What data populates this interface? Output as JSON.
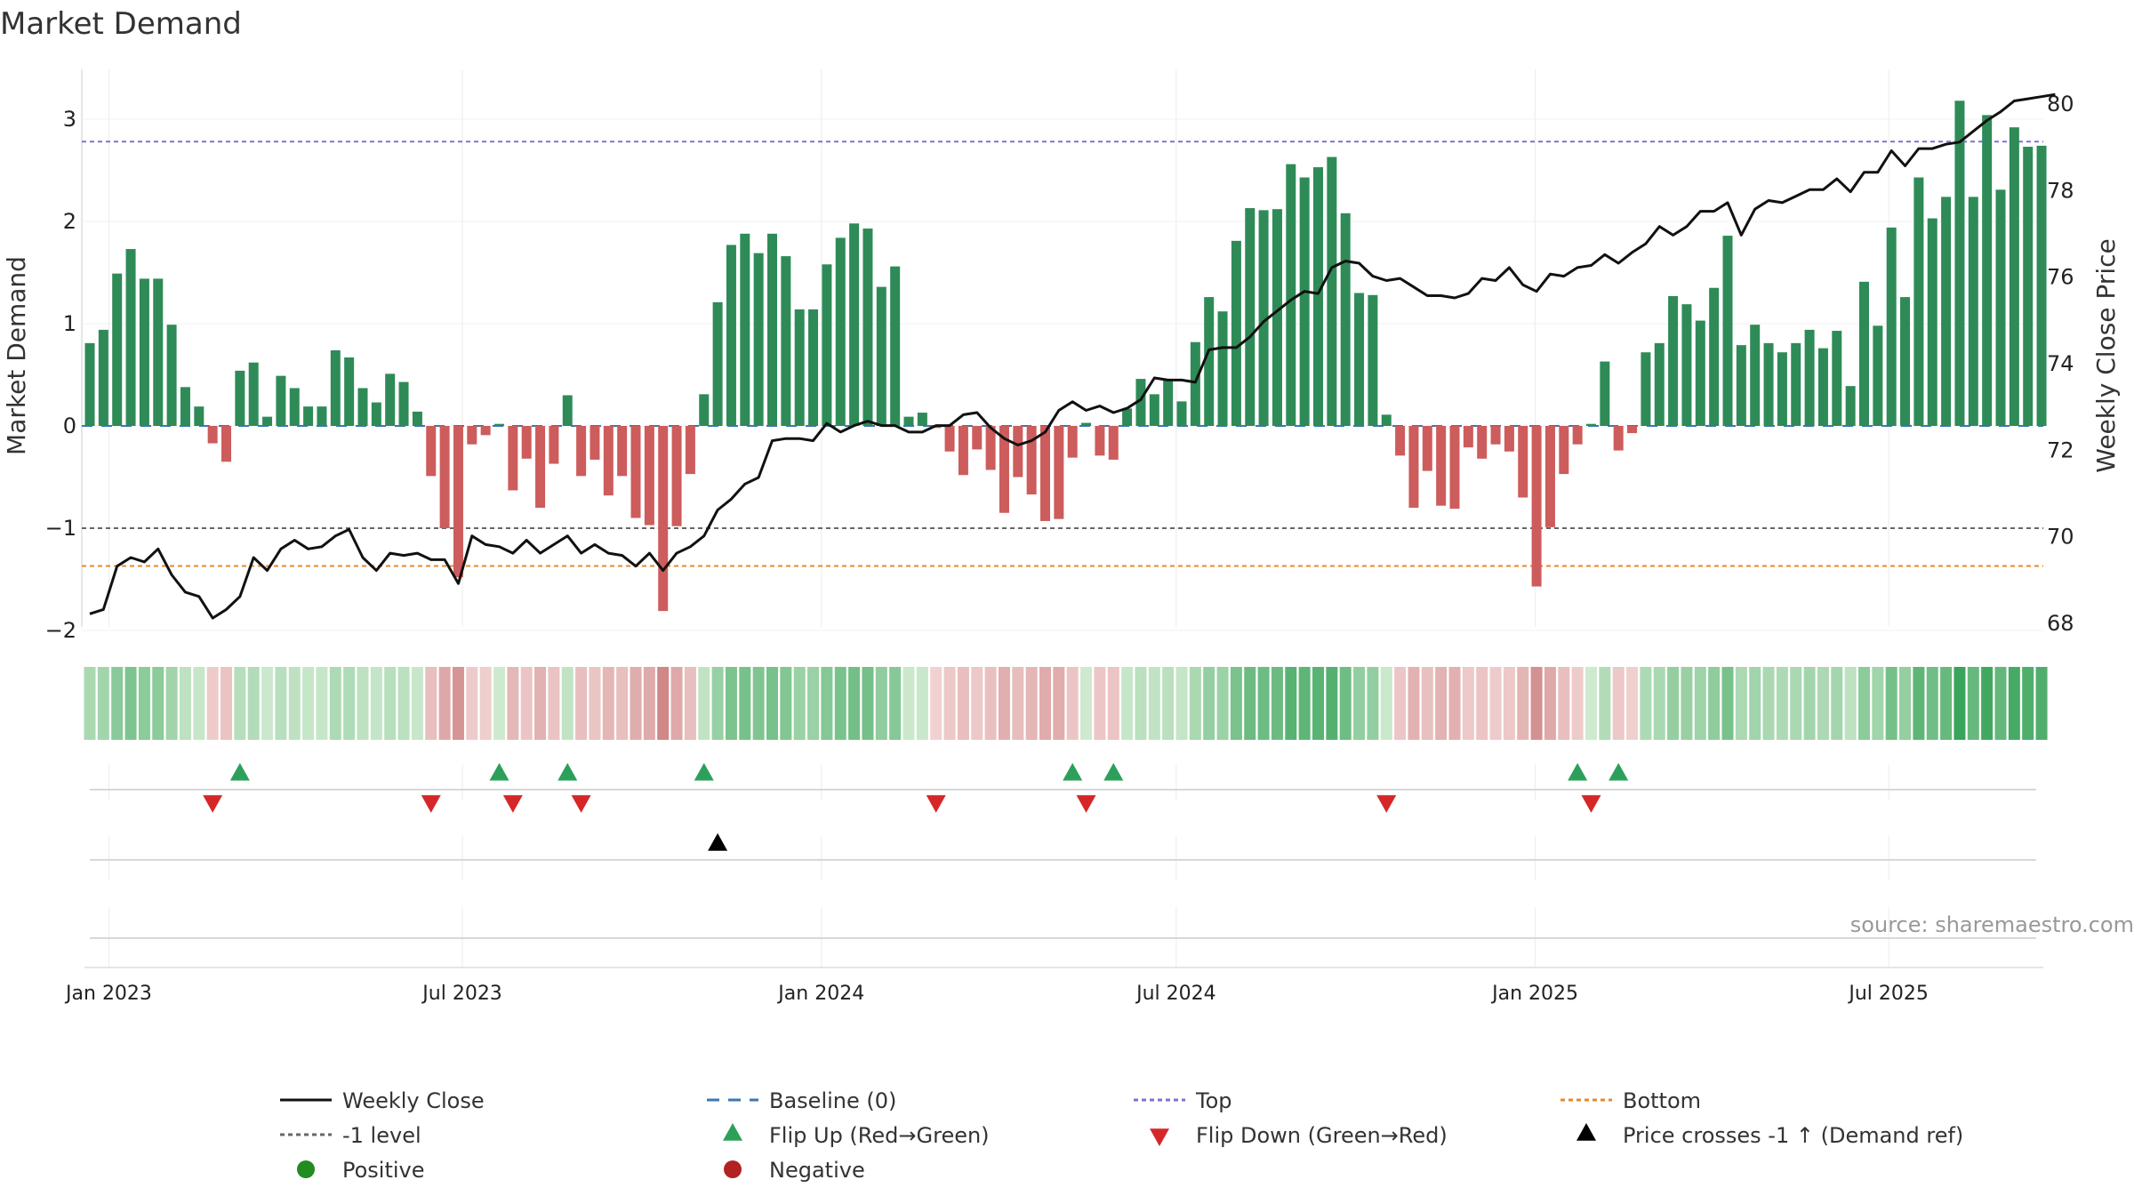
{
  "chart_data": {
    "type": "bar",
    "title": "Market Demand",
    "ylabel": "Market Demand",
    "y2label": "Weekly Close Price",
    "source": "source: sharemaestro.com",
    "ylim": [
      -2.05,
      3.45
    ],
    "y2lim": [
      67.6,
      80.5
    ],
    "yticks": [
      {
        "v": 3,
        "label": "3"
      },
      {
        "v": 2,
        "label": "2"
      },
      {
        "v": 1,
        "label": "1"
      },
      {
        "v": 0,
        "label": "0"
      },
      {
        "v": -1,
        "label": "−1"
      },
      {
        "v": -2,
        "label": "−2"
      }
    ],
    "y2ticks": [
      {
        "v": 80,
        "label": "80"
      },
      {
        "v": 78,
        "label": "78"
      },
      {
        "v": 76,
        "label": "76"
      },
      {
        "v": 74,
        "label": "74"
      },
      {
        "v": 72,
        "label": "72"
      },
      {
        "v": 70,
        "label": "70"
      },
      {
        "v": 68,
        "label": "68"
      }
    ],
    "xticks": [
      {
        "week": 1.4,
        "label": "Jan 2023"
      },
      {
        "week": 27.3,
        "label": "Jul 2023"
      },
      {
        "week": 53.6,
        "label": "Jan 2024"
      },
      {
        "week": 79.6,
        "label": "Jul 2024"
      },
      {
        "week": 105.9,
        "label": "Jan 2025"
      },
      {
        "week": 131.8,
        "label": "Jul 2025"
      }
    ],
    "reference_lines": {
      "top": 2.78,
      "bottom": -1.37,
      "minus_one": -1.0,
      "baseline": 0.0
    },
    "demand": [
      0.81,
      0.94,
      1.49,
      1.73,
      1.44,
      1.44,
      0.99,
      0.38,
      0.19,
      -0.17,
      -0.35,
      0.54,
      0.62,
      0.09,
      0.49,
      0.37,
      0.19,
      0.19,
      0.74,
      0.67,
      0.37,
      0.23,
      0.51,
      0.43,
      0.14,
      -0.49,
      -1.0,
      -1.48,
      -0.18,
      -0.09,
      0.02,
      -0.63,
      -0.32,
      -0.8,
      -0.37,
      0.3,
      -0.49,
      -0.33,
      -0.68,
      -0.49,
      -0.9,
      -0.97,
      -1.81,
      -0.98,
      -0.47,
      0.31,
      1.21,
      1.77,
      1.88,
      1.69,
      1.88,
      1.66,
      1.14,
      1.14,
      1.58,
      1.84,
      1.98,
      1.93,
      1.36,
      1.56,
      0.09,
      0.13,
      -0.02,
      -0.25,
      -0.48,
      -0.23,
      -0.43,
      -0.85,
      -0.5,
      -0.67,
      -0.93,
      -0.91,
      -0.31,
      0.03,
      -0.29,
      -0.33,
      0.17,
      0.46,
      0.31,
      0.45,
      0.24,
      0.82,
      1.26,
      1.12,
      1.81,
      2.13,
      2.11,
      2.12,
      2.56,
      2.43,
      2.53,
      2.63,
      2.08,
      1.3,
      1.28,
      0.11,
      -0.29,
      -0.8,
      -0.44,
      -0.78,
      -0.81,
      -0.21,
      -0.32,
      -0.18,
      -0.25,
      -0.7,
      -1.57,
      -0.99,
      -0.47,
      -0.18,
      0.02,
      0.63,
      -0.24,
      -0.07,
      0.72,
      0.81,
      1.27,
      1.19,
      1.03,
      1.35,
      1.86,
      0.79,
      0.99,
      0.81,
      0.72,
      0.81,
      0.94,
      0.76,
      0.93,
      0.39,
      1.41,
      0.98,
      1.94,
      1.26,
      2.43,
      2.03,
      2.24,
      3.18,
      2.24,
      3.04,
      2.31,
      2.92,
      2.73,
      2.74
    ],
    "weekly_close": [
      68.2,
      68.3,
      69.3,
      69.5,
      69.4,
      69.7,
      69.1,
      68.7,
      68.6,
      68.1,
      68.3,
      68.6,
      69.5,
      69.2,
      69.7,
      69.9,
      69.7,
      69.75,
      70.0,
      70.15,
      69.5,
      69.2,
      69.6,
      69.55,
      69.6,
      69.45,
      69.45,
      68.9,
      70.0,
      69.8,
      69.75,
      69.6,
      69.9,
      69.6,
      69.8,
      70.0,
      69.6,
      69.8,
      69.6,
      69.55,
      69.3,
      69.6,
      69.2,
      69.6,
      69.75,
      70.0,
      70.6,
      70.85,
      71.2,
      71.35,
      72.2,
      72.25,
      72.25,
      72.2,
      72.6,
      72.4,
      72.55,
      72.65,
      72.55,
      72.55,
      72.4,
      72.4,
      72.55,
      72.55,
      72.8,
      72.85,
      72.5,
      72.25,
      72.1,
      72.2,
      72.4,
      72.9,
      73.1,
      72.9,
      73.0,
      72.85,
      72.95,
      73.15,
      73.65,
      73.6,
      73.6,
      73.55,
      74.3,
      74.35,
      74.35,
      74.6,
      74.95,
      75.2,
      75.45,
      75.65,
      75.6,
      76.2,
      76.35,
      76.3,
      76.0,
      75.9,
      75.95,
      75.75,
      75.55,
      75.55,
      75.5,
      75.6,
      75.95,
      75.9,
      76.2,
      75.8,
      75.65,
      76.05,
      76.0,
      76.2,
      76.25,
      76.5,
      76.3,
      76.55,
      76.75,
      77.15,
      76.95,
      77.15,
      77.5,
      77.5,
      77.7,
      76.95,
      77.55,
      77.75,
      77.7,
      77.85,
      78.0,
      78.0,
      78.25,
      77.95,
      78.4,
      78.4,
      78.9,
      78.55,
      78.95,
      78.95,
      79.05,
      79.1,
      79.35,
      79.6,
      79.8,
      80.05,
      80.1,
      80.15,
      80.2
    ],
    "flip_up_weeks": [
      11.0,
      30.0,
      35.0,
      45.0,
      72.0,
      75.0,
      109.0,
      112.0
    ],
    "flip_down_weeks": [
      9.0,
      25.0,
      31.0,
      36.0,
      62.0,
      73.0,
      95.0,
      110.0
    ],
    "price_cross_weeks": [
      46.0
    ],
    "legend": {
      "weekly_close": "Weekly Close",
      "baseline": "Baseline (0)",
      "top": "Top",
      "bottom": "Bottom",
      "minus_one": "-1 level",
      "flip_up": "Flip Up (Red→Green)",
      "flip_down": "Flip Down (Green→Red)",
      "price_cross": "Price crosses -1 ↑ (Demand ref)",
      "positive": "Positive",
      "negative": "Negative"
    },
    "colors": {
      "positive_bar": "#2e8b57",
      "negative_bar": "#cd5c5c",
      "close_line": "#111111",
      "baseline": "#3a78b0",
      "top": "#7a75c9",
      "bottom": "#e8882a",
      "minus_one": "#666666",
      "flip_up": "#2ca05a",
      "flip_down": "#d62728",
      "price_cross": "#000000",
      "positive_dot": "#228b22",
      "negative_dot": "#b22222"
    }
  }
}
